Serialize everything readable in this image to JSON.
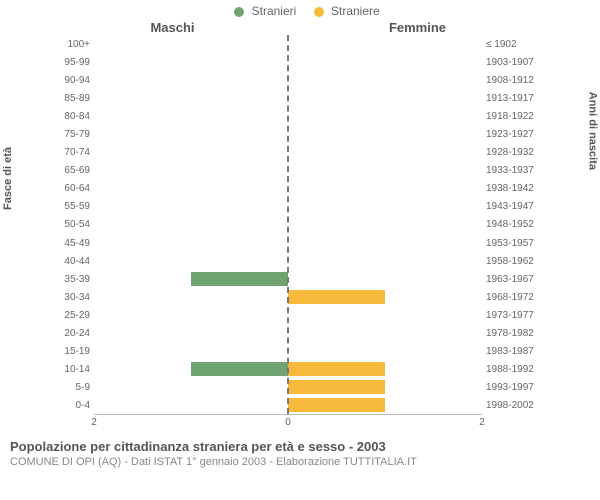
{
  "legend": {
    "male": {
      "label": "Stranieri",
      "color": "#6fa36f"
    },
    "female": {
      "label": "Straniere",
      "color": "#f6b93b"
    }
  },
  "headers": {
    "left": "Maschi",
    "right": "Femmine"
  },
  "axis_titles": {
    "left": "Fasce di età",
    "right": "Anni di nascita"
  },
  "chart": {
    "type": "population-pyramid",
    "xmax": 2,
    "xticks_left": [
      2,
      0
    ],
    "xticks_right": [
      0,
      2
    ],
    "background": "#ffffff",
    "midline_color": "#777777",
    "rows": [
      {
        "age": "100+",
        "birth": "≤ 1902",
        "m": 0,
        "f": 0
      },
      {
        "age": "95-99",
        "birth": "1903-1907",
        "m": 0,
        "f": 0
      },
      {
        "age": "90-94",
        "birth": "1908-1912",
        "m": 0,
        "f": 0
      },
      {
        "age": "85-89",
        "birth": "1913-1917",
        "m": 0,
        "f": 0
      },
      {
        "age": "80-84",
        "birth": "1918-1922",
        "m": 0,
        "f": 0
      },
      {
        "age": "75-79",
        "birth": "1923-1927",
        "m": 0,
        "f": 0
      },
      {
        "age": "70-74",
        "birth": "1928-1932",
        "m": 0,
        "f": 0
      },
      {
        "age": "65-69",
        "birth": "1933-1937",
        "m": 0,
        "f": 0
      },
      {
        "age": "60-64",
        "birth": "1938-1942",
        "m": 0,
        "f": 0
      },
      {
        "age": "55-59",
        "birth": "1943-1947",
        "m": 0,
        "f": 0
      },
      {
        "age": "50-54",
        "birth": "1948-1952",
        "m": 0,
        "f": 0
      },
      {
        "age": "45-49",
        "birth": "1953-1957",
        "m": 0,
        "f": 0
      },
      {
        "age": "40-44",
        "birth": "1958-1962",
        "m": 0,
        "f": 0
      },
      {
        "age": "35-39",
        "birth": "1963-1967",
        "m": 1,
        "f": 0
      },
      {
        "age": "30-34",
        "birth": "1968-1972",
        "m": 0,
        "f": 1
      },
      {
        "age": "25-29",
        "birth": "1973-1977",
        "m": 0,
        "f": 0
      },
      {
        "age": "20-24",
        "birth": "1978-1982",
        "m": 0,
        "f": 0
      },
      {
        "age": "15-19",
        "birth": "1983-1987",
        "m": 0,
        "f": 0
      },
      {
        "age": "10-14",
        "birth": "1988-1992",
        "m": 1,
        "f": 1
      },
      {
        "age": "5-9",
        "birth": "1993-1997",
        "m": 0,
        "f": 1
      },
      {
        "age": "0-4",
        "birth": "1998-2002",
        "m": 0,
        "f": 1
      }
    ]
  },
  "footer": {
    "title": "Popolazione per cittadinanza straniera per età e sesso - 2003",
    "subtitle": "COMUNE DI OPI (AQ) - Dati ISTAT 1° gennaio 2003 - Elaborazione TUTTITALIA.IT"
  }
}
